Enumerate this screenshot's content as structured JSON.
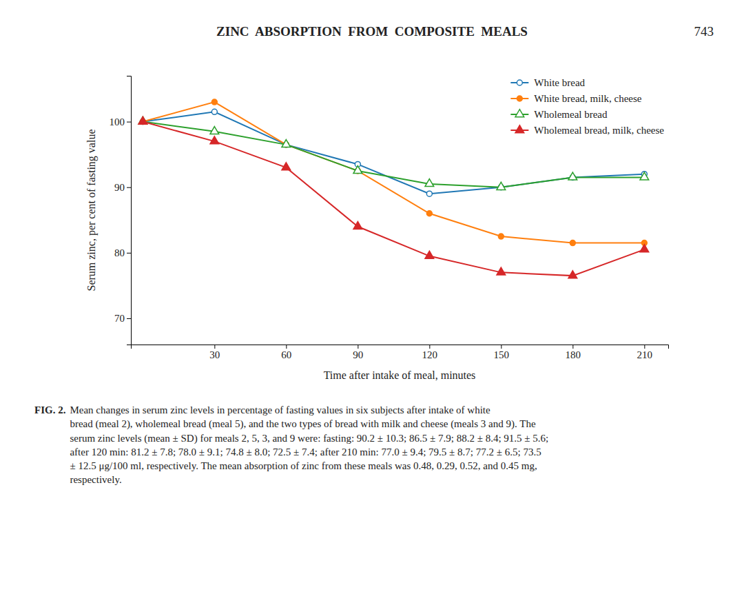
{
  "chart_data": {
    "type": "line",
    "title": "ZINC  ABSORPTION  FROM  COMPOSITE  MEALS",
    "page_number": "743",
    "x_label": "Time after intake of meal, minutes",
    "y_label": "Serum zinc, per cent of fasting value",
    "x": [
      0,
      30,
      60,
      90,
      120,
      150,
      180,
      210
    ],
    "series": [
      {
        "name": "White bread",
        "marker": "circle-open",
        "values": [
          100,
          101.5,
          96.5,
          93.5,
          89.0,
          90.0,
          91.5,
          92.0
        ]
      },
      {
        "name": "White bread, milk, cheese",
        "marker": "circle-filled",
        "values": [
          100,
          103.0,
          96.5,
          92.5,
          86.0,
          82.5,
          81.5,
          81.5
        ]
      },
      {
        "name": "Wholemeal bread",
        "marker": "triangle-open",
        "values": [
          100,
          98.5,
          96.5,
          92.5,
          90.5,
          90.0,
          91.5,
          91.5
        ]
      },
      {
        "name": "Wholemeal bread, milk, cheese",
        "marker": "triangle-filled",
        "values": [
          100,
          97.0,
          93.0,
          84.0,
          79.5,
          77.0,
          76.5,
          80.5
        ]
      }
    ],
    "xlim": [
      -5,
      220
    ],
    "xticks": [
      30,
      60,
      90,
      120,
      150,
      180,
      210
    ],
    "ylim": [
      66,
      107
    ],
    "yticks": [
      70,
      80,
      90,
      100
    ],
    "grid": false,
    "legend": "upper-right",
    "caption_label": "FIG. 2.",
    "caption": [
      "Mean changes in serum zinc levels in percentage of fasting values in six subjects after intake of white",
      "bread (meal 2), wholemeal bread (meal 5), and the two types of bread with milk and cheese (meals 3 and 9). The",
      "serum zinc levels (mean ± SD) for meals 2, 5, 3, and 9 were: fasting: 90.2 ± 10.3; 86.5 ± 7.9; 88.2 ± 8.4; 91.5 ± 5.6;",
      "after 120 min: 81.2 ± 7.8; 78.0 ± 9.1; 74.8 ± 8.0; 72.5 ± 7.4; after 210 min: 77.0 ± 9.4; 79.5 ± 8.7; 77.2 ± 6.5; 73.5",
      "± 12.5 μg/100 ml, respectively. The mean absorption of zinc from these meals was 0.48, 0.29, 0.52, and 0.45 mg,",
      "respectively."
    ]
  }
}
